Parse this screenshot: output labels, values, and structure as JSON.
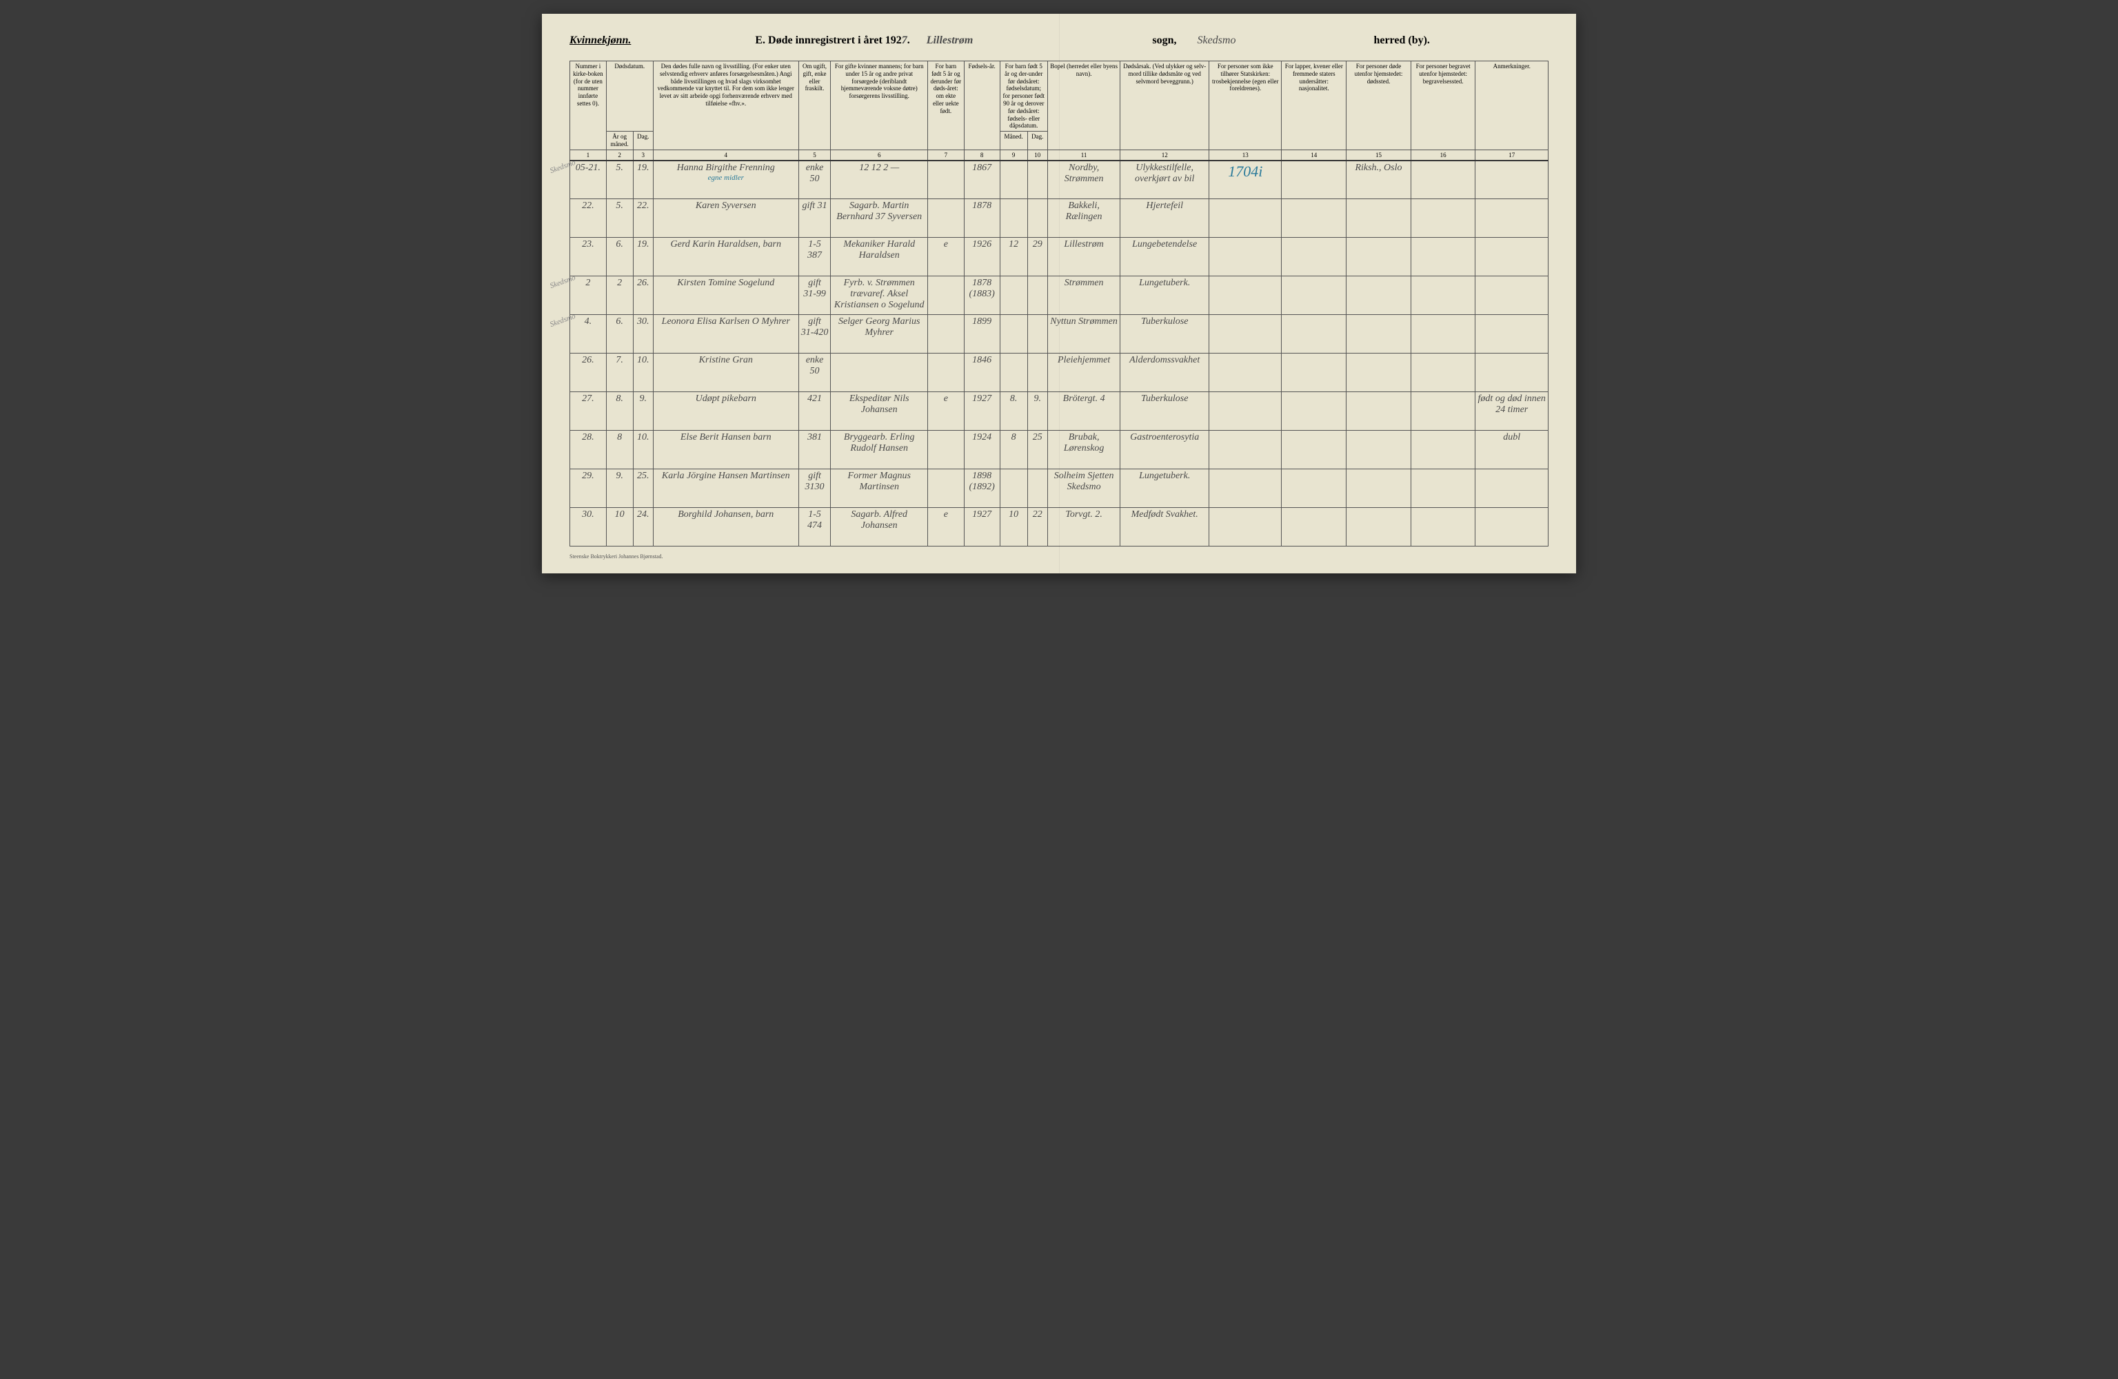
{
  "header": {
    "gender_label": "Kvinnekjønn.",
    "title_prefix": "E.  Døde innregistrert i året 192",
    "year_digit": "7",
    "sogn_hw": "Lillestrøm",
    "sogn_label": "sogn,",
    "herred_hw": "Skedsmo",
    "herred_label": "herred (by)."
  },
  "columns": {
    "c1": "Nummer i kirke-boken (for de uten nummer innførte settes 0).",
    "c2": "Dødsdatum.",
    "c2a": "År og måned.",
    "c2b": "Dag.",
    "c4": "Den dødes fulle navn og livsstilling. (For enker uten selvstendig erhverv anføres forsørgelsesmåten.) Angi både livsstillingen og hvad slags virksomhet vedkommende var knyttet til. For dem som ikke lenger levet av sitt arbeide opgi forhenværende erhverv med tilføielse «fhv.».",
    "c5": "Om ugift, gift, enke eller fraskilt.",
    "c6": "For gifte kvinner mannens; for barn under 15 år og andre privat forsørgede (deriblandt hjemmeværende voksne døtre) forsørgerens livsstilling.",
    "c7": "For barn født 5 år og derunder før døds-året: om ekte eller uekte født.",
    "c8": "Fødsels-år.",
    "c9_10": "For barn født 5 år og der-under før dødsåret: fødselsdatum; for personer født 90 år og derover før dødsåret: fødsels- eller dåpsdatum.",
    "c9": "Måned.",
    "c10": "Dag.",
    "c11": "Bopel (herredet eller byens navn).",
    "c12": "Dødsårsak. (Ved ulykker og selv-mord tillike dødsmåte og ved selvmord beveggrunn.)",
    "c13": "For personer som ikke tilhører Statskirken: trosbekjennelse (egen eller foreldrenes).",
    "c14": "For lapper, kvener eller fremmede staters undersåtter: nasjonalitet.",
    "c15": "For personer døde utenfor hjemstedet: dødssted.",
    "c16": "For personer begravet utenfor hjemstedet: begravelsessted.",
    "c17": "Anmerkninger."
  },
  "colnums": [
    "1",
    "2",
    "3",
    "4",
    "5",
    "6",
    "7",
    "8",
    "9",
    "10",
    "11",
    "12",
    "13",
    "14",
    "15",
    "16",
    "17"
  ],
  "rows": [
    {
      "num": "05-21.",
      "mnd": "5.",
      "dag": "19.",
      "navn": "Hanna Birgithe Frenning",
      "navn2": "egne midler",
      "status": "enke 50",
      "forsorger": "12  12  2 —",
      "ekte": "",
      "faar": "1867",
      "fmnd": "",
      "fdag": "",
      "bopel": "Nordby, Strømmen",
      "aarsak": "Ulykkestilfelle, overkjørt av bil",
      "c13": "1704i",
      "c14": "",
      "c15": "Riksh., Oslo",
      "c16": "",
      "c17": "",
      "margin": "Skedsmo"
    },
    {
      "num": "22.",
      "mnd": "5.",
      "dag": "22.",
      "navn": "Karen Syversen",
      "navn2": "",
      "status": "gift 31",
      "forsorger": "Sagarb. Martin Bernhard 37 Syversen",
      "ekte": "",
      "faar": "1878",
      "fmnd": "",
      "fdag": "",
      "bopel": "Bakkeli, Rælingen",
      "aarsak": "Hjertefeil",
      "c13": "",
      "c14": "",
      "c15": "",
      "c16": "",
      "c17": "",
      "margin": ""
    },
    {
      "num": "23.",
      "mnd": "6.",
      "dag": "19.",
      "navn": "Gerd Karin Haraldsen, barn",
      "navn2": "",
      "status": "1-5 387",
      "forsorger": "Mekaniker Harald Haraldsen",
      "ekte": "e",
      "faar": "1926",
      "fmnd": "12",
      "fdag": "29",
      "bopel": "Lillestrøm",
      "aarsak": "Lungebetendelse",
      "c13": "",
      "c14": "",
      "c15": "",
      "c16": "",
      "c17": "",
      "margin": ""
    },
    {
      "num": "2",
      "mnd": "2",
      "dag": "26.",
      "navn": "Kirsten Tomine Sogelund",
      "navn2": "",
      "status": "gift 31-99",
      "forsorger": "Fyrb. v. Strømmen trævaref. Aksel Kristiansen o Sogelund",
      "ekte": "",
      "faar": "1878 (1883)",
      "fmnd": "",
      "fdag": "",
      "bopel": "Strømmen",
      "aarsak": "Lungetuberk.",
      "c13": "",
      "c14": "",
      "c15": "",
      "c16": "",
      "c17": "",
      "margin": "Skedsmo"
    },
    {
      "num": "4.",
      "mnd": "6.",
      "dag": "30.",
      "navn": "Leonora Elisa Karlsen O Myhrer",
      "navn2": "",
      "status": "gift 31-420",
      "forsorger": "Selger Georg Marius Myhrer",
      "ekte": "",
      "faar": "1899",
      "fmnd": "",
      "fdag": "",
      "bopel": "Nyttun Strømmen",
      "aarsak": "Tuberkulose",
      "c13": "",
      "c14": "",
      "c15": "",
      "c16": "",
      "c17": "",
      "margin": "Skedsmo"
    },
    {
      "num": "26.",
      "mnd": "7.",
      "dag": "10.",
      "navn": "Kristine Gran",
      "navn2": "",
      "status": "enke 50",
      "forsorger": "",
      "ekte": "",
      "faar": "1846",
      "fmnd": "",
      "fdag": "",
      "bopel": "Pleiehjemmet",
      "aarsak": "Alderdomssvakhet",
      "c13": "",
      "c14": "",
      "c15": "",
      "c16": "",
      "c17": "",
      "margin": ""
    },
    {
      "num": "27.",
      "mnd": "8.",
      "dag": "9.",
      "navn": "Udøpt pikebarn",
      "navn2": "",
      "status": "421",
      "forsorger": "Ekspeditør Nils Johansen",
      "ekte": "e",
      "faar": "1927",
      "fmnd": "8.",
      "fdag": "9.",
      "bopel": "Brötergt. 4",
      "aarsak": "Tuberkulose",
      "c13": "",
      "c14": "",
      "c15": "",
      "c16": "",
      "c17": "født og død innen 24 timer",
      "margin": ""
    },
    {
      "num": "28.",
      "mnd": "8",
      "dag": "10.",
      "navn": "Else Berit Hansen barn",
      "navn2": "",
      "status": "381",
      "forsorger": "Bryggearb. Erling Rudolf Hansen",
      "ekte": "",
      "faar": "1924",
      "fmnd": "8",
      "fdag": "25",
      "bopel": "Brubak, Lørenskog",
      "aarsak": "Gastroenterosytia",
      "c13": "",
      "c14": "",
      "c15": "",
      "c16": "",
      "c17": "dubl",
      "margin": ""
    },
    {
      "num": "29.",
      "mnd": "9.",
      "dag": "25.",
      "navn": "Karla Jörgine Hansen Martinsen",
      "navn2": "",
      "status": "gift 3130",
      "forsorger": "Former Magnus Martinsen",
      "ekte": "",
      "faar": "1898 (1892)",
      "fmnd": "",
      "fdag": "",
      "bopel": "Solheim Sjetten Skedsmo",
      "aarsak": "Lungetuberk.",
      "c13": "",
      "c14": "",
      "c15": "",
      "c16": "",
      "c17": "",
      "margin": ""
    },
    {
      "num": "30.",
      "mnd": "10",
      "dag": "24.",
      "navn": "Borghild Johansen, barn",
      "navn2": "",
      "status": "1-5 474",
      "forsorger": "Sagarb. Alfred Johansen",
      "ekte": "e",
      "faar": "1927",
      "fmnd": "10",
      "fdag": "22",
      "bopel": "Torvgt. 2.",
      "aarsak": "Medfødt Svakhet.",
      "c13": "",
      "c14": "",
      "c15": "",
      "c16": "",
      "c17": "",
      "margin": ""
    }
  ],
  "footer": "Steenske Boktrykkeri Johannes Bjørnstad."
}
